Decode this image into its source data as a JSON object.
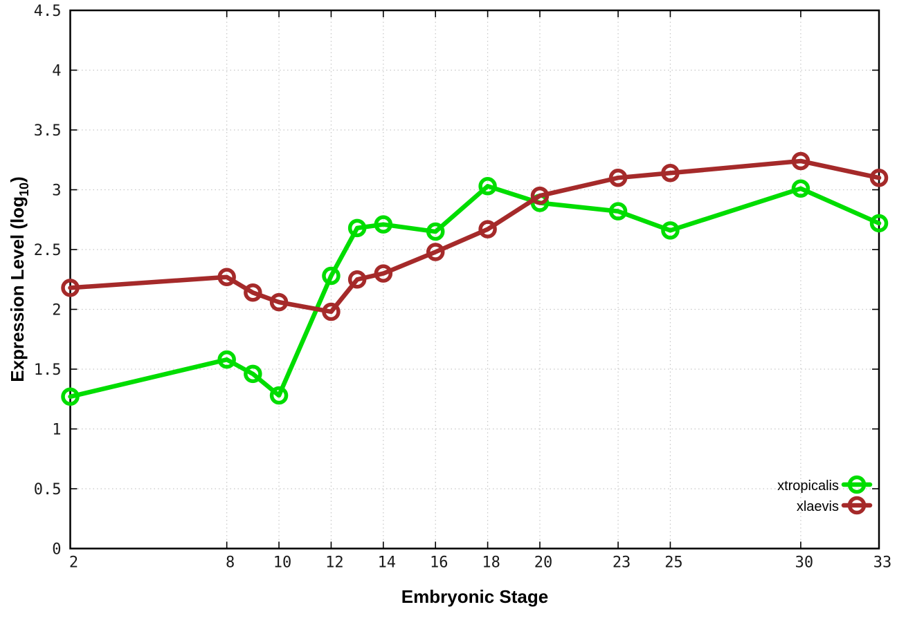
{
  "figure": {
    "background": "#ffffff",
    "frame_color": "#000000",
    "grid_color": "#c6c6c6",
    "legend": [
      {
        "label": "xtropicalis",
        "color": "#00dd00"
      },
      {
        "label": "xlaevis",
        "color": "#a52a2a"
      }
    ]
  },
  "chart_data": {
    "type": "line",
    "title": "",
    "xlabel": "Embryonic Stage",
    "ylabel": "Expression Level (log10)",
    "ylabel_parts": {
      "main": "Expression Level (log",
      "sub": "10",
      "end": ")"
    },
    "x": [
      2,
      8,
      9,
      10,
      12,
      13,
      14,
      16,
      18,
      20,
      23,
      25,
      30,
      33
    ],
    "series": [
      {
        "name": "xtropicalis",
        "color": "#00dd00",
        "values": [
          1.27,
          1.58,
          1.46,
          1.28,
          2.28,
          2.68,
          2.71,
          2.65,
          3.03,
          2.89,
          2.82,
          2.66,
          3.01,
          2.72
        ]
      },
      {
        "name": "xlaevis",
        "color": "#a52a2a",
        "values": [
          2.18,
          2.27,
          2.14,
          2.06,
          1.98,
          2.25,
          2.3,
          2.48,
          2.67,
          2.95,
          3.1,
          3.14,
          3.24,
          3.1
        ]
      }
    ],
    "xticks": {
      "values": [
        2,
        8,
        10,
        12,
        14,
        16,
        18,
        20,
        23,
        25,
        30,
        33
      ],
      "labels": [
        "2",
        "8",
        "10",
        "12",
        "14",
        "16",
        "18",
        "20",
        "23",
        "25",
        "30",
        "33"
      ]
    },
    "yticks": {
      "values": [
        0,
        0.5,
        1,
        1.5,
        2,
        2.5,
        3,
        3.5,
        4,
        4.5
      ],
      "labels": [
        "0",
        "0.5",
        "1",
        "1.5",
        "2",
        "2.5",
        "3",
        "3.5",
        "4",
        "4.5"
      ]
    },
    "xlim": [
      2,
      33
    ],
    "ylim": [
      0,
      4.5
    ],
    "grid": "dotted, both axes, at labeled ticks",
    "legend_position": "inside bottom-right",
    "marker": "open-circle"
  }
}
